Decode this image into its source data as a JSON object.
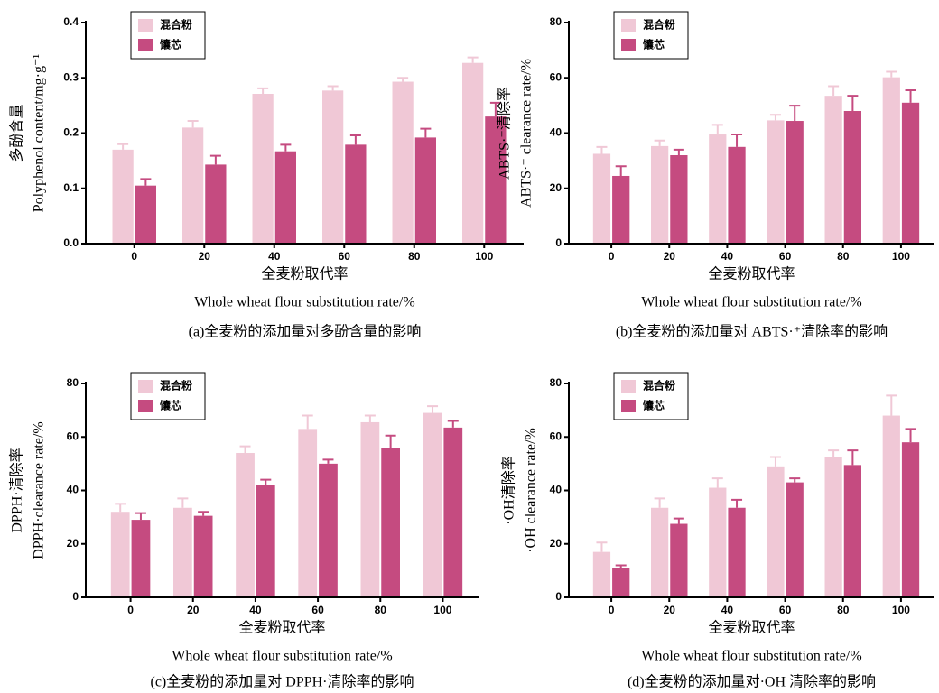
{
  "chart_data": [
    {
      "type": "bar",
      "caption": "(a)全麦粉的添加量对多酚含量的影响",
      "ylabel": [
        "多酚含量",
        "Polyphenol content/mg·g⁻¹"
      ],
      "xlabel": [
        "全麦粉取代率",
        "Whole wheat flour substitution rate/%"
      ],
      "categories": [
        "0",
        "20",
        "40",
        "60",
        "80",
        "100"
      ],
      "ylim": [
        0,
        0.4
      ],
      "yticks": [
        {
          "value": 0,
          "label": "0.0"
        },
        0.1,
        0.2,
        0.3,
        0.4
      ],
      "series": [
        {
          "name": "混合粉",
          "color": "#f0c8d6",
          "values": [
            0.17,
            0.21,
            0.271,
            0.277,
            0.293,
            0.327
          ],
          "errors": [
            0.01,
            0.012,
            0.01,
            0.008,
            0.007,
            0.01
          ]
        },
        {
          "name": "馕芯",
          "color": "#c54b80",
          "values": [
            0.105,
            0.143,
            0.167,
            0.179,
            0.192,
            0.23
          ],
          "errors": [
            0.012,
            0.016,
            0.012,
            0.017,
            0.016,
            0.025
          ]
        }
      ]
    },
    {
      "type": "bar",
      "caption": "(b)全麦粉的添加量对 ABTS·⁺清除率的影响",
      "ylabel": [
        "ABTS·⁺清除率",
        "ABTS·⁺ clearance rate/%"
      ],
      "xlabel": [
        "全麦粉取代率",
        "Whole wheat flour substitution rate/%"
      ],
      "categories": [
        "0",
        "20",
        "40",
        "60",
        "80",
        "100"
      ],
      "ylim": [
        0,
        80
      ],
      "yticks": [
        0,
        20,
        40,
        60,
        80
      ],
      "series": [
        {
          "name": "混合粉",
          "color": "#f0c8d6",
          "values": [
            32.5,
            35.3,
            39.5,
            44.6,
            53.5,
            60.2
          ],
          "errors": [
            2.5,
            2,
            3.5,
            2,
            3.5,
            2
          ]
        },
        {
          "name": "馕芯",
          "color": "#c54b80",
          "values": [
            24.5,
            32,
            35,
            44.4,
            48,
            51
          ],
          "errors": [
            3.5,
            2,
            4.5,
            5.5,
            5.5,
            4.5
          ]
        }
      ]
    },
    {
      "type": "bar",
      "caption": "(c)全麦粉的添加量对 DPPH·清除率的影响",
      "ylabel": [
        "DPPH·清除率",
        "DPPH·clearance rate/%"
      ],
      "xlabel": [
        "全麦粉取代率",
        "Whole wheat flour substitution rate/%"
      ],
      "categories": [
        "0",
        "20",
        "40",
        "60",
        "80",
        "100"
      ],
      "ylim": [
        0,
        80
      ],
      "yticks": [
        0,
        20,
        40,
        60,
        80
      ],
      "series": [
        {
          "name": "混合粉",
          "color": "#f0c8d6",
          "values": [
            32,
            33.5,
            54,
            63,
            65.5,
            69
          ],
          "errors": [
            3,
            3.5,
            2.5,
            5,
            2.5,
            2.5
          ]
        },
        {
          "name": "馕芯",
          "color": "#c54b80",
          "values": [
            29,
            30.5,
            42,
            50,
            56,
            63.5
          ],
          "errors": [
            2.5,
            1.5,
            2,
            1.5,
            4.5,
            2.5
          ]
        }
      ]
    },
    {
      "type": "bar",
      "caption": "(d)全麦粉的添加量对·OH 清除率的影响",
      "ylabel": [
        "·OH清除率",
        "·OH clearance rate/%"
      ],
      "xlabel": [
        "全麦粉取代率",
        "Whole wheat flour substitution rate/%"
      ],
      "categories": [
        "0",
        "20",
        "40",
        "60",
        "80",
        "100"
      ],
      "ylim": [
        0,
        80
      ],
      "yticks": [
        0,
        20,
        40,
        60,
        80
      ],
      "series": [
        {
          "name": "混合粉",
          "color": "#f0c8d6",
          "values": [
            17,
            33.5,
            41,
            49,
            52.5,
            68
          ],
          "errors": [
            3.5,
            3.5,
            3.5,
            3.5,
            2.5,
            7.5
          ]
        },
        {
          "name": "馕芯",
          "color": "#c54b80",
          "values": [
            11,
            27.5,
            33.5,
            43,
            49.5,
            58
          ],
          "errors": [
            1,
            2,
            3,
            1.5,
            5.5,
            5
          ]
        }
      ]
    }
  ]
}
